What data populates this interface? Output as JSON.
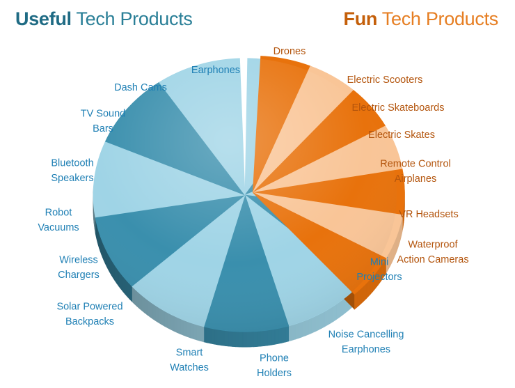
{
  "left_title": {
    "bold": "Useful",
    "rest": " Tech Products"
  },
  "right_title": {
    "bold": "Fun",
    "rest": " Tech Products"
  },
  "colors": {
    "useful_light": "#9fd4e6",
    "useful_dark": "#3a8fad",
    "useful_label": "#1e7fb4",
    "fun_dark": "#e8720c",
    "fun_light": "#f9c597",
    "fun_label": "#b3540c",
    "left_title": "#2a7f97",
    "right_title": "#e67e22"
  },
  "chart_data": {
    "type": "pie",
    "groups": [
      {
        "name": "Useful Tech Products",
        "slices": [
          {
            "label": "Earphones",
            "value": 1
          },
          {
            "label": "Mini Projectors",
            "value": 1
          },
          {
            "label": "Noise Cancelling Earphones",
            "value": 1
          },
          {
            "label": "Phone Holders",
            "value": 1
          },
          {
            "label": "Smart Watches",
            "value": 1
          },
          {
            "label": "Solar Powered Backpacks",
            "value": 1
          },
          {
            "label": "Wireless Chargers",
            "value": 1
          },
          {
            "label": "Robot Vacuums",
            "value": 1
          },
          {
            "label": "Bluetooth Speakers",
            "value": 1
          },
          {
            "label": "TV Sound Bars",
            "value": 1
          },
          {
            "label": "Dash Cams",
            "value": 1
          }
        ]
      },
      {
        "name": "Fun Tech Products",
        "slices": [
          {
            "label": "Drones",
            "value": 1
          },
          {
            "label": "Electric Scooters",
            "value": 1
          },
          {
            "label": "Electric Skateboards",
            "value": 1
          },
          {
            "label": "Electric Skates",
            "value": 1
          },
          {
            "label": "Remote Control Airplanes",
            "value": 1
          },
          {
            "label": "VR Headsets",
            "value": 1
          },
          {
            "label": "Waterproof Action Cameras",
            "value": 1
          }
        ]
      }
    ]
  }
}
